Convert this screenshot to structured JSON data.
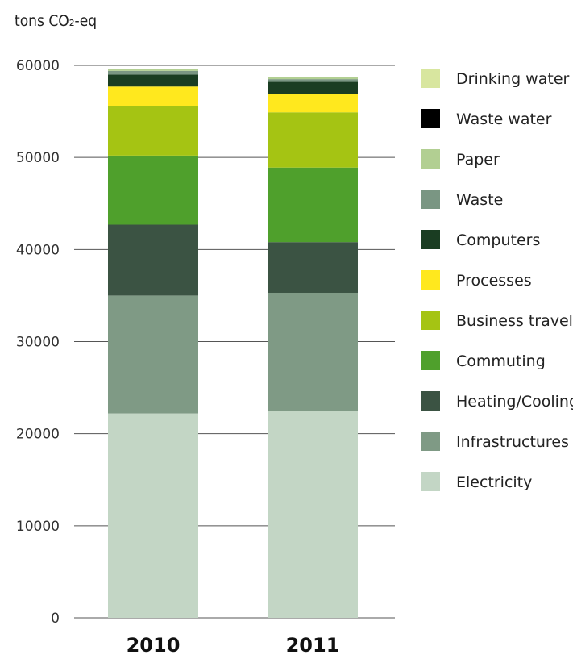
{
  "chart_data": {
    "type": "bar",
    "stacked": true,
    "ylabel": "tons CO₂-eq",
    "ylim": [
      0,
      60000
    ],
    "yticks": [
      0,
      10000,
      20000,
      30000,
      40000,
      50000,
      60000
    ],
    "grid": true,
    "legend_position": "right",
    "categories": [
      "2010",
      "2011"
    ],
    "series": [
      {
        "name": "Electricity",
        "color": "#c3d6c5",
        "values": [
          22200,
          22500
        ]
      },
      {
        "name": "Infrastructures",
        "color": "#7f9a85",
        "values": [
          12800,
          12800
        ]
      },
      {
        "name": "Heating/Cooling",
        "color": "#3b5343",
        "values": [
          7700,
          5500
        ]
      },
      {
        "name": "Commuting",
        "color": "#4fa02c",
        "values": [
          7500,
          8100
        ]
      },
      {
        "name": "Business travel",
        "color": "#a5c413",
        "values": [
          5400,
          6000
        ]
      },
      {
        "name": "Processes",
        "color": "#ffe81e",
        "values": [
          2100,
          2000
        ]
      },
      {
        "name": "Computers",
        "color": "#1a3d22",
        "values": [
          1300,
          1300
        ]
      },
      {
        "name": "Waste",
        "color": "#7a9683",
        "values": [
          400,
          300
        ]
      },
      {
        "name": "Paper",
        "color": "#b2cf92",
        "values": [
          250,
          250
        ]
      },
      {
        "name": "Waste water",
        "color": "#000000",
        "values": [
          0,
          0
        ]
      },
      {
        "name": "Drinking water",
        "color": "#d8e69f",
        "values": [
          0,
          0
        ]
      }
    ]
  }
}
